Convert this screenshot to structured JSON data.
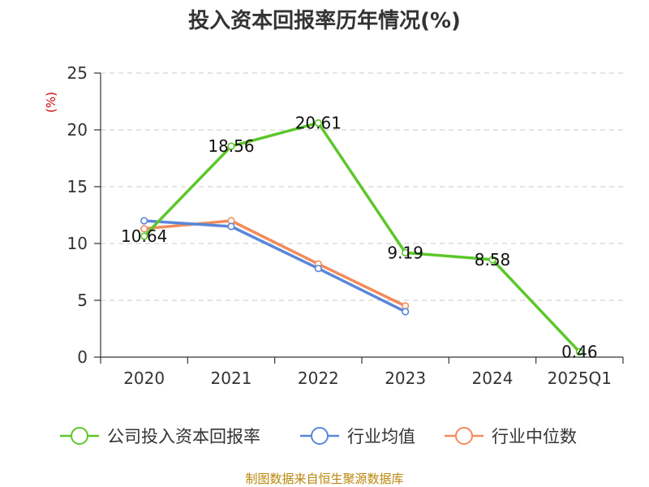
{
  "source_note": "制图数据来自恒生聚源数据库",
  "chart_data": {
    "type": "line",
    "title": "投入资本回报率历年情况(%)",
    "ylabel": "(%)",
    "xlabel": "",
    "categories": [
      "2020",
      "2021",
      "2022",
      "2023",
      "2024",
      "2025Q1"
    ],
    "ylim": [
      0,
      25
    ],
    "yticks": [
      0,
      5,
      10,
      15,
      20,
      25
    ],
    "grid": true,
    "legend_position": "bottom",
    "series": [
      {
        "name": "公司投入资本回报率",
        "color": "#5cc72a",
        "values": [
          10.64,
          18.56,
          20.61,
          9.19,
          8.58,
          0.46
        ],
        "labels": [
          "10.64",
          "18.56",
          "20.61",
          "9.19",
          "8.58",
          "0.46"
        ],
        "show_labels": true
      },
      {
        "name": "行业均值",
        "color": "#5b87d9",
        "values": [
          12.0,
          11.5,
          7.8,
          4.0,
          null,
          null
        ],
        "show_labels": false
      },
      {
        "name": "行业中位数",
        "color": "#f38b5a",
        "values": [
          11.3,
          12.0,
          8.2,
          4.5,
          null,
          null
        ],
        "show_labels": false
      }
    ]
  }
}
